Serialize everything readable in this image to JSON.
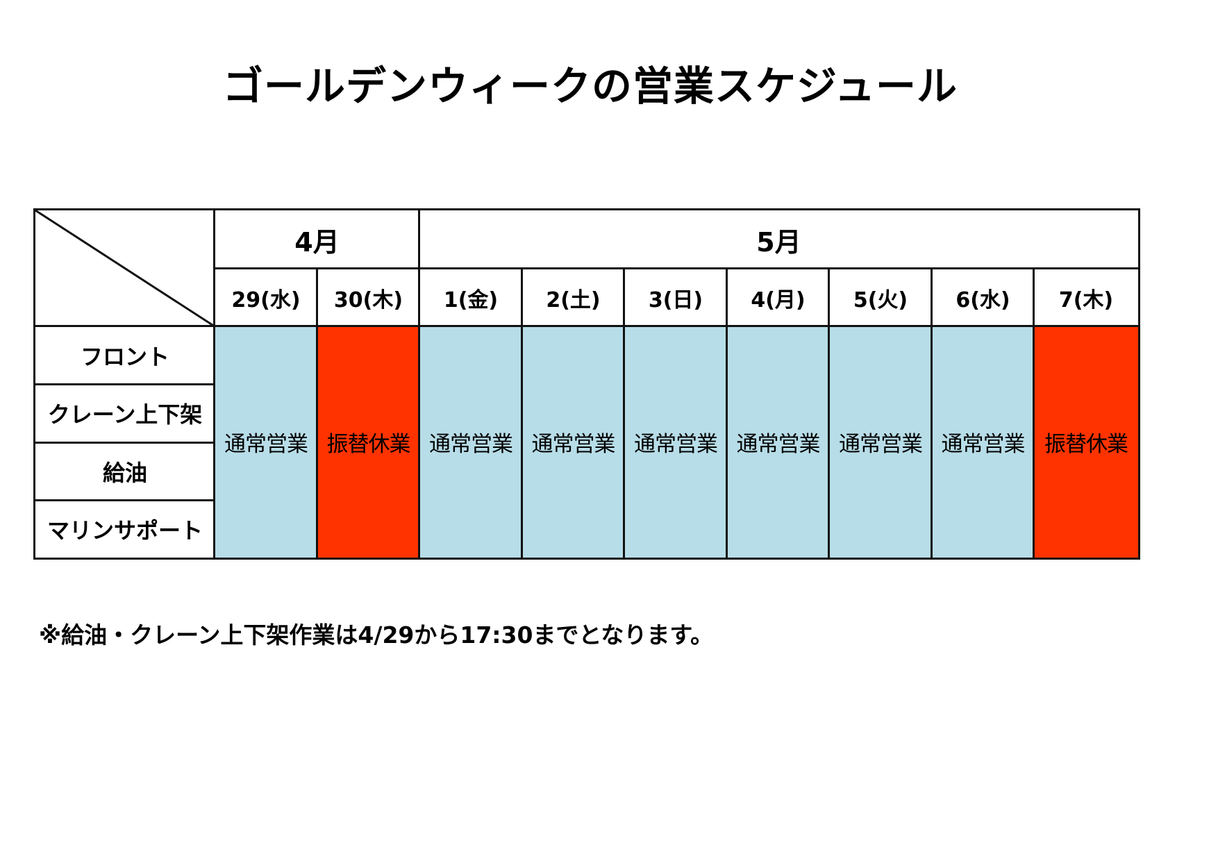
{
  "title": "ゴールデンウィークの営業スケジュール",
  "colors": {
    "open": "#b7dde8",
    "closed": "#ff3300",
    "border": "#111111"
  },
  "table": {
    "months": [
      {
        "label": "4月"
      },
      {
        "label": "5月"
      }
    ],
    "days": [
      {
        "label": "29(水)",
        "status": "通常営業",
        "state": "open"
      },
      {
        "label": "30(木)",
        "status": "振替休業",
        "state": "closed"
      },
      {
        "label": "1(金)",
        "status": "通常営業",
        "state": "open"
      },
      {
        "label": "2(土)",
        "status": "通常営業",
        "state": "open"
      },
      {
        "label": "3(日)",
        "status": "通常営業",
        "state": "open"
      },
      {
        "label": "4(月)",
        "status": "通常営業",
        "state": "open"
      },
      {
        "label": "5(火)",
        "status": "通常営業",
        "state": "open"
      },
      {
        "label": "6(水)",
        "status": "通常営業",
        "state": "open"
      },
      {
        "label": "7(木)",
        "status": "振替休業",
        "state": "closed"
      }
    ],
    "rows": [
      {
        "label": "フロント"
      },
      {
        "label": "クレーン上下架"
      },
      {
        "label": "給油"
      },
      {
        "label": "マリンサポート"
      }
    ]
  },
  "note": "※給油・クレーン上下架作業は4/29から17:30までとなります。"
}
